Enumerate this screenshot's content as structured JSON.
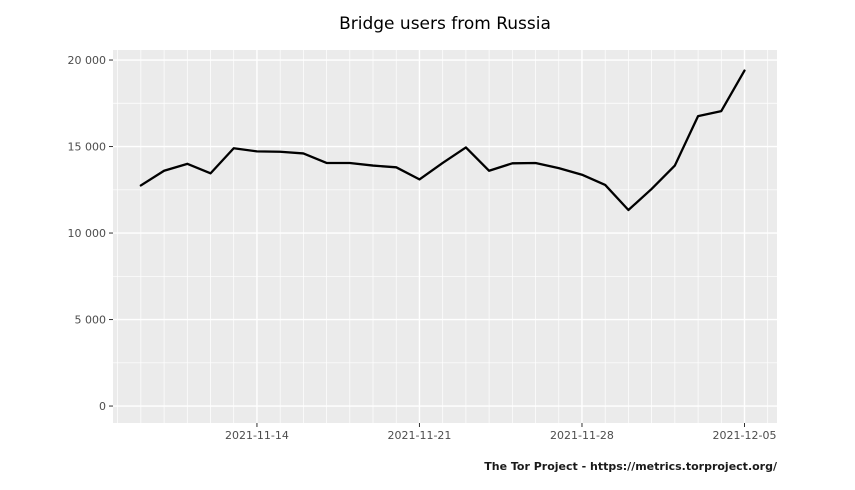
{
  "page": {
    "background": "#FFFFFF"
  },
  "chart_data": {
    "type": "line",
    "title": "Bridge users from Russia",
    "caption": "The Tor Project - https://metrics.torproject.org/",
    "xlabel": "",
    "ylabel": "",
    "legend": "none",
    "grid": true,
    "x": [
      "2021-11-09",
      "2021-11-10",
      "2021-11-11",
      "2021-11-12",
      "2021-11-13",
      "2021-11-14",
      "2021-11-15",
      "2021-11-16",
      "2021-11-17",
      "2021-11-18",
      "2021-11-19",
      "2021-11-20",
      "2021-11-21",
      "2021-11-22",
      "2021-11-23",
      "2021-11-24",
      "2021-11-25",
      "2021-11-26",
      "2021-11-27",
      "2021-11-28",
      "2021-11-29",
      "2021-11-30",
      "2021-12-01",
      "2021-12-02",
      "2021-12-03",
      "2021-12-04",
      "2021-12-05"
    ],
    "values": [
      12750,
      13600,
      14000,
      13450,
      14900,
      14720,
      14700,
      14600,
      14050,
      14050,
      13900,
      13800,
      13100,
      14050,
      14950,
      13600,
      14030,
      14050,
      13750,
      13370,
      12780,
      11330,
      12550,
      13900,
      16760,
      17050,
      19390
    ],
    "x_ticks": [
      {
        "label": "2021-11-14",
        "day": 5
      },
      {
        "label": "2021-11-21",
        "day": 12
      },
      {
        "label": "2021-11-28",
        "day": 19
      },
      {
        "label": "2021-12-05",
        "day": 26
      }
    ],
    "y_ticks": [
      {
        "label": "0",
        "value": 0
      },
      {
        "label": "5 000",
        "value": 5000
      },
      {
        "label": "10 000",
        "value": 10000
      },
      {
        "label": "15 000",
        "value": 15000
      },
      {
        "label": "20 000",
        "value": 20000
      }
    ],
    "x_range_days": [
      -1.2,
      27.4
    ],
    "y_range": [
      -980,
      20580
    ],
    "colors": {
      "line": "#000000",
      "panel_bg": "#EBEBEB",
      "grid": "#FFFFFF",
      "axis_text": "#4D4D4D",
      "tick": "#333333",
      "title": "#000000",
      "caption": "#1A1A1A"
    }
  }
}
